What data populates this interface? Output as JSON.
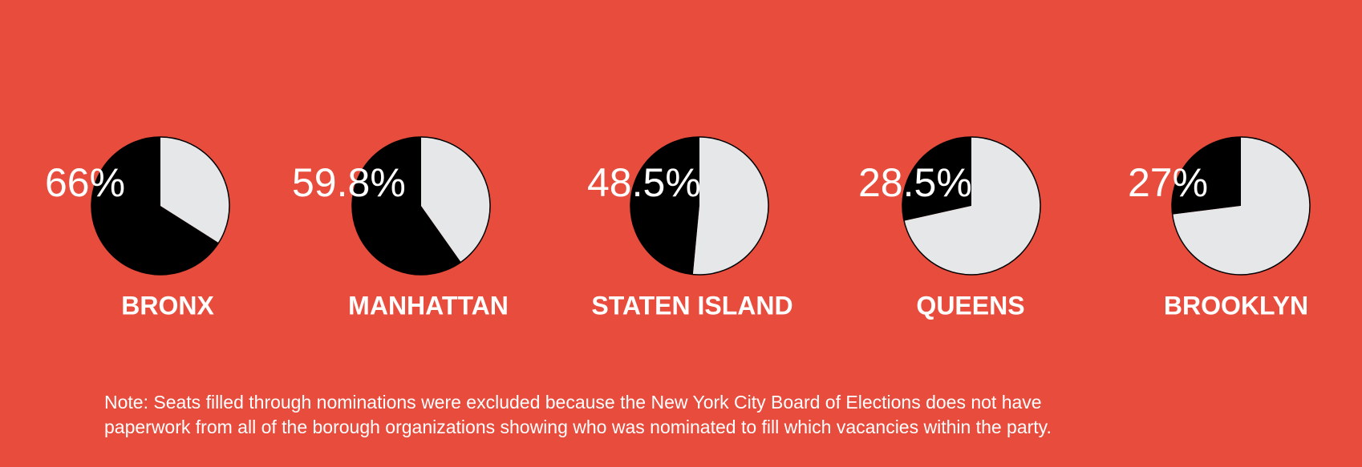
{
  "chart_data": [
    {
      "type": "pie",
      "title": "BRONX",
      "values": [
        66,
        34
      ],
      "value_labels": [
        "66%",
        null
      ],
      "colors": [
        "#000000",
        "#e6e7e8"
      ]
    },
    {
      "type": "pie",
      "title": "MANHATTAN",
      "values": [
        59.8,
        40.2
      ],
      "value_labels": [
        "59.8%",
        null
      ],
      "colors": [
        "#000000",
        "#e6e7e8"
      ]
    },
    {
      "type": "pie",
      "title": "STATEN ISLAND",
      "values": [
        48.5,
        51.5
      ],
      "value_labels": [
        "48.5%",
        null
      ],
      "colors": [
        "#000000",
        "#e6e7e8"
      ]
    },
    {
      "type": "pie",
      "title": "QUEENS",
      "values": [
        28.5,
        71.5
      ],
      "value_labels": [
        "28.5%",
        null
      ],
      "colors": [
        "#000000",
        "#e6e7e8"
      ]
    },
    {
      "type": "pie",
      "title": "BROOKLYN",
      "values": [
        27,
        73
      ],
      "value_labels": [
        "27%",
        null
      ],
      "colors": [
        "#000000",
        "#e6e7e8"
      ]
    }
  ],
  "note": [
    "Note: Seats filled through nominations were excluded because the New York City Board of Elections does not have",
    "paperwork from all of the borough organizations showing who was nominated to fill which vacancies within the party."
  ]
}
